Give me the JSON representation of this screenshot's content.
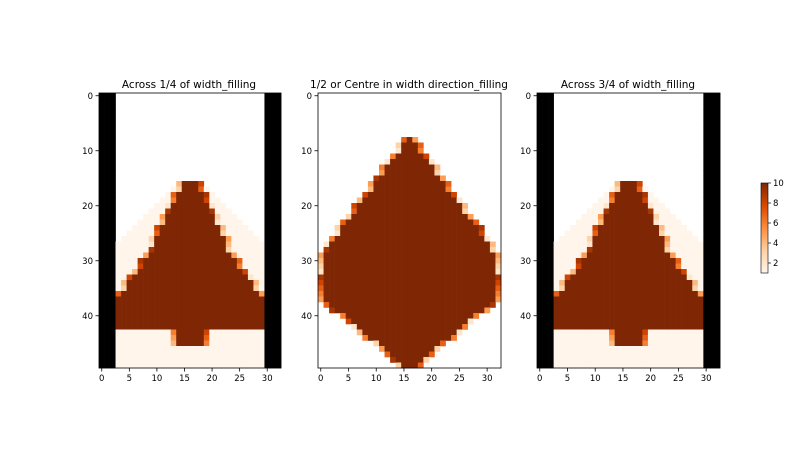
{
  "chart_data": {
    "type": "heatmap",
    "colormap": "Oranges",
    "colorbar": {
      "min": 1,
      "max": 10,
      "ticks": [
        "2",
        "4",
        "6",
        "8",
        "10"
      ],
      "tick_values": [
        2,
        4,
        6,
        8,
        10
      ]
    },
    "panels": [
      {
        "title": "Across 1/4 of width_filling",
        "xticks": [
          "0",
          "5",
          "10",
          "15",
          "20",
          "25",
          "30"
        ],
        "yticks": [
          "0",
          "10",
          "20",
          "30",
          "40"
        ],
        "xlim": [
          -0.5,
          32.5
        ],
        "ylim": [
          49.5,
          -0.5
        ],
        "mask_columns": [
          0,
          1,
          2,
          30,
          31,
          32
        ],
        "region_rows": [
          16,
          49
        ],
        "dense_rows": [
          16,
          45
        ],
        "dense_value": 10,
        "background_value": 1
      },
      {
        "title": "1/2 or Centre in width direction_filling",
        "xticks": [
          "0",
          "5",
          "10",
          "15",
          "20",
          "25",
          "30"
        ],
        "yticks": [
          "0",
          "10",
          "20",
          "30",
          "40"
        ],
        "xlim": [
          -0.5,
          32.5
        ],
        "ylim": [
          49.5,
          -0.5
        ],
        "mask_columns": [],
        "region_rows": [
          8,
          49
        ],
        "dense_rows": [
          8,
          49
        ],
        "dense_value": 10,
        "background_value": 0
      },
      {
        "title": "Across 3/4 of width_filling",
        "xticks": [
          "0",
          "5",
          "10",
          "15",
          "20",
          "25",
          "30"
        ],
        "yticks": [
          "0",
          "10",
          "20",
          "30",
          "40"
        ],
        "xlim": [
          -0.5,
          32.5
        ],
        "ylim": [
          49.5,
          -0.5
        ],
        "mask_columns": [
          0,
          1,
          2,
          30,
          31,
          32
        ],
        "region_rows": [
          16,
          49
        ],
        "dense_rows": [
          16,
          45
        ],
        "dense_value": 10,
        "background_value": 1
      }
    ]
  }
}
